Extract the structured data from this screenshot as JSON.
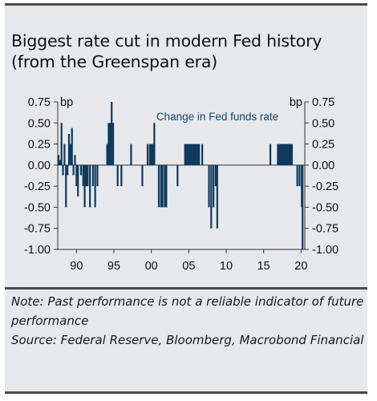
{
  "title": "Biggest rate cut in modern Fed history (from the Greenspan era)",
  "note": "Note: Past performance is not a reliable indicator of future performance",
  "source": "Source: Federal Reserve, Bloomberg, Macrobond Financial",
  "chart_data": {
    "type": "bar",
    "series_label": "Change in Fed funds rate",
    "unit_left": "bp",
    "unit_right": "bp",
    "color": "#0e3a5e",
    "ylim": [
      -1.0,
      0.75
    ],
    "yticks": [
      "0.75",
      "0.50",
      "0.25",
      "0.00",
      "-0.25",
      "-0.50",
      "-0.75",
      "-1.00"
    ],
    "ytick_values": [
      0.75,
      0.5,
      0.25,
      0.0,
      -0.25,
      -0.5,
      -0.75,
      -1.0
    ],
    "xticks": [
      "90",
      "95",
      "00",
      "05",
      "10",
      "15",
      "20"
    ],
    "xtick_years": [
      1990,
      1995,
      2000,
      2005,
      2010,
      2015,
      2020
    ],
    "grid": false,
    "bars": [
      {
        "year": 1987.6,
        "value": 0.12
      },
      {
        "year": 1987.8,
        "value": 0.06
      },
      {
        "year": 1988.0,
        "value": 0.5
      },
      {
        "year": 1988.2,
        "value": -0.12
      },
      {
        "year": 1988.4,
        "value": 0.25
      },
      {
        "year": 1988.6,
        "value": -0.5
      },
      {
        "year": 1988.8,
        "value": -0.12
      },
      {
        "year": 1989.0,
        "value": 0.37
      },
      {
        "year": 1989.2,
        "value": 0.25
      },
      {
        "year": 1989.4,
        "value": 0.44
      },
      {
        "year": 1989.6,
        "value": -0.12
      },
      {
        "year": 1989.8,
        "value": 0.12
      },
      {
        "year": 1990.0,
        "value": -0.25
      },
      {
        "year": 1990.2,
        "value": -0.37
      },
      {
        "year": 1990.6,
        "value": -0.12
      },
      {
        "year": 1990.9,
        "value": -0.25
      },
      {
        "year": 1991.1,
        "value": -0.5
      },
      {
        "year": 1991.3,
        "value": -0.25
      },
      {
        "year": 1991.5,
        "value": -0.25
      },
      {
        "year": 1991.8,
        "value": -0.5
      },
      {
        "year": 1992.2,
        "value": -0.25
      },
      {
        "year": 1992.5,
        "value": -0.5
      },
      {
        "year": 1992.8,
        "value": -0.25
      },
      {
        "year": 1994.1,
        "value": 0.25
      },
      {
        "year": 1994.3,
        "value": 0.5
      },
      {
        "year": 1994.5,
        "value": 0.5
      },
      {
        "year": 1994.7,
        "value": 0.75
      },
      {
        "year": 1994.9,
        "value": 0.5
      },
      {
        "year": 1995.5,
        "value": -0.25
      },
      {
        "year": 1996.0,
        "value": -0.25
      },
      {
        "year": 1997.3,
        "value": 0.25
      },
      {
        "year": 1998.8,
        "value": -0.25
      },
      {
        "year": 1999.5,
        "value": 0.25
      },
      {
        "year": 1999.8,
        "value": 0.25
      },
      {
        "year": 2000.0,
        "value": 0.25
      },
      {
        "year": 2000.2,
        "value": 0.25
      },
      {
        "year": 2000.4,
        "value": 0.5
      },
      {
        "year": 2001.0,
        "value": -0.5
      },
      {
        "year": 2001.3,
        "value": -0.5
      },
      {
        "year": 2001.5,
        "value": -0.5
      },
      {
        "year": 2001.8,
        "value": -0.5
      },
      {
        "year": 2002.0,
        "value": -0.5
      },
      {
        "year": 2003.5,
        "value": -0.25
      },
      {
        "year": 2004.5,
        "value": 0.25
      },
      {
        "year": 2006.8,
        "value": 0.25
      },
      {
        "year": 2007.7,
        "value": -0.5
      },
      {
        "year": 2008.0,
        "value": -0.75
      },
      {
        "year": 2008.3,
        "value": -0.5
      },
      {
        "year": 2008.6,
        "value": -0.25
      },
      {
        "year": 2008.8,
        "value": -0.75
      },
      {
        "year": 2015.9,
        "value": 0.25
      },
      {
        "year": 2016.9,
        "value": 0.25
      },
      {
        "year": 2017.4,
        "value": 0.25
      },
      {
        "year": 2017.9,
        "value": 0.25
      },
      {
        "year": 2018.4,
        "value": 0.25
      },
      {
        "year": 2019.5,
        "value": -0.25
      },
      {
        "year": 2019.8,
        "value": -0.25
      },
      {
        "year": 2020.1,
        "value": -0.5
      },
      {
        "year": 2020.2,
        "value": -1.0
      }
    ],
    "segments": [
      {
        "from": 2004.5,
        "to": 2006.5,
        "value": 0.25
      },
      {
        "from": 2016.9,
        "to": 2018.9,
        "value": 0.25
      }
    ]
  }
}
